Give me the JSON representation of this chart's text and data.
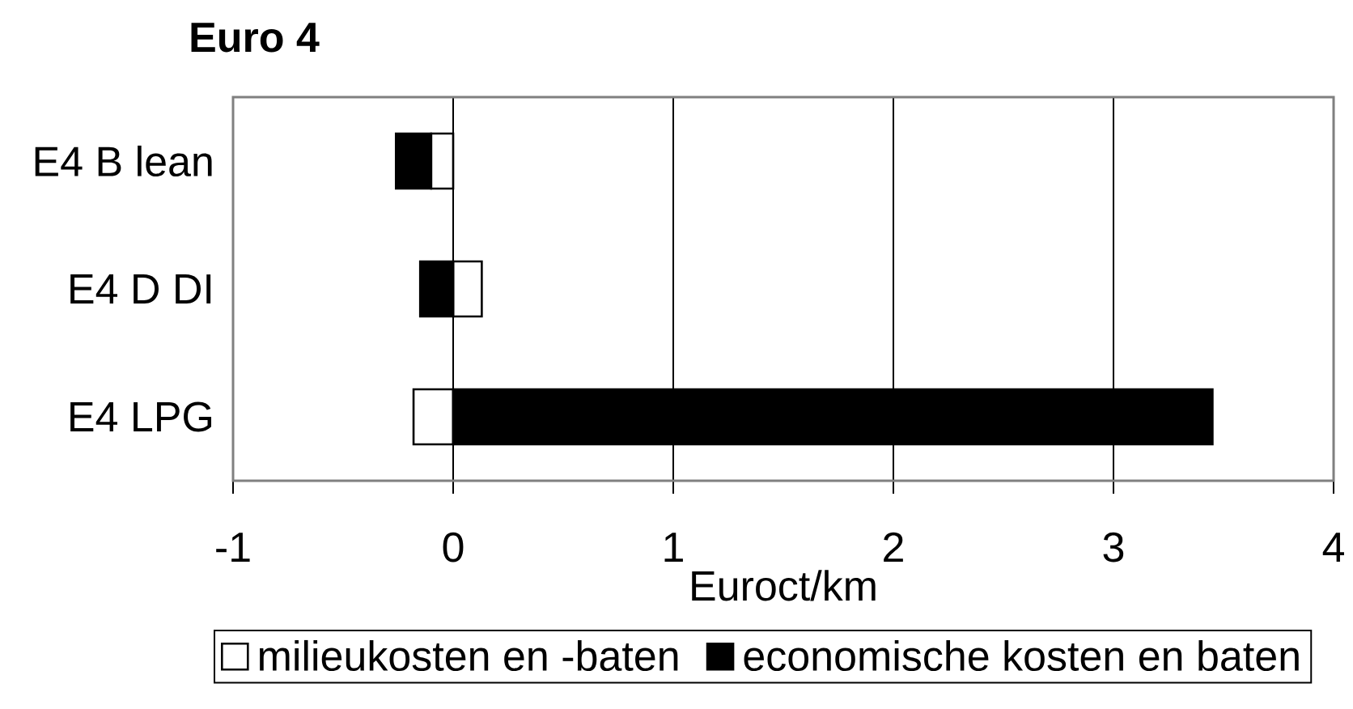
{
  "chart_data": {
    "type": "bar",
    "orientation": "horizontal",
    "stacked": true,
    "title": "Euro 4",
    "xlabel": "Euroct/km",
    "categories": [
      "E4 B lean",
      "E4 D DI",
      "E4 LPG"
    ],
    "series": [
      {
        "name": "milieukosten en -baten",
        "color": "#ffffff",
        "values": [
          -0.1,
          0.13,
          -0.18
        ]
      },
      {
        "name": "economische kosten en baten",
        "color": "#000000",
        "values": [
          -0.16,
          -0.15,
          3.45
        ]
      }
    ],
    "xlim": [
      -1,
      4
    ],
    "xticks": [
      -1,
      0,
      1,
      2,
      3,
      4
    ],
    "grid": "x",
    "legend": "bottom"
  }
}
